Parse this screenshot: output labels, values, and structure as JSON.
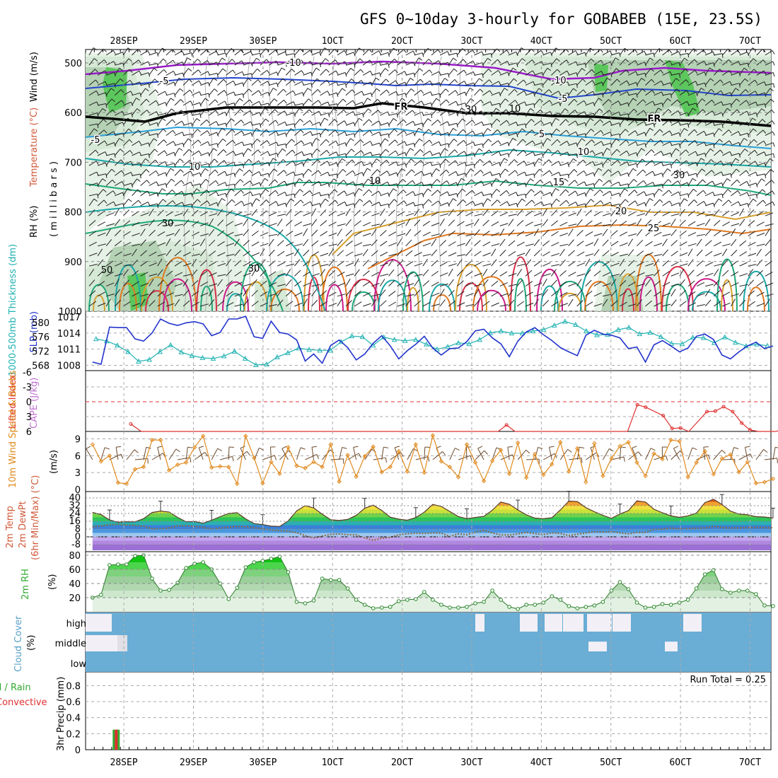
{
  "title": "GFS 0~10day 3-hourly for GOBABEB (15E, 23.5S)",
  "colors": {
    "rh_green": "#3cc93c",
    "temperature_label": "#d05a3a",
    "temp_purple": "#9a1bc9",
    "wind_label": "#000000",
    "slp_blue": "#2233cc",
    "thickness_teal": "#22b2b2",
    "lifted_red": "#e03030",
    "cape_violet": "#c070d0",
    "wind10_orange": "#e08a1e",
    "rh2m_green": "#33aa33",
    "cloud_blue": "#6aadd5",
    "precip_green": "#33aa33",
    "precip_red": "#e03030",
    "grid": "#aaaaaa"
  },
  "x_axis": {
    "dates": [
      "28SEP",
      "29SEP",
      "30SEP",
      "1OCT",
      "2OCT",
      "3OCT",
      "4OCT",
      "5OCT",
      "6OCT",
      "7OCT"
    ]
  },
  "panels": {
    "upper_air": {
      "labels": {
        "rh": "RH (%)",
        "temperature": "Temperature (°C)",
        "wind": "Wind (m/s)",
        "pressure": "( m i l l i b a r s )"
      },
      "y_ticks": [
        "500",
        "600",
        "700",
        "800",
        "900",
        "1000"
      ],
      "isotherm_labels": [
        {
          "text": "-10",
          "color": "#9a1bc9"
        },
        {
          "text": "-10",
          "color": "#9a1bc9"
        },
        {
          "text": "-5",
          "color": "#2244cc"
        },
        {
          "text": "-5",
          "color": "#2244cc"
        },
        {
          "text": "FR",
          "color": "#000000"
        },
        {
          "text": "FR",
          "color": "#000000"
        },
        {
          "text": "-5",
          "color": "#2ba0d8"
        },
        {
          "text": "5",
          "color": "#2ba0d8"
        },
        {
          "text": "10",
          "color": "#1ba8a8"
        },
        {
          "text": "10",
          "color": "#1ba8a8"
        },
        {
          "text": "15",
          "color": "#20a878"
        },
        {
          "text": "20",
          "color": "#d8a030"
        },
        {
          "text": "25",
          "color": "#e07820"
        }
      ],
      "rh_labels": [
        "30",
        "50",
        "30",
        "30",
        "10",
        "10",
        "30"
      ]
    },
    "slp": {
      "labels": {
        "thickness": "1000-500mb Thickness (dm)",
        "slp": "SLP (mb)"
      },
      "thickness_ticks": [
        "580",
        "576",
        "572",
        "568"
      ],
      "slp_ticks": [
        "1017",
        "1014",
        "1011",
        "1008"
      ],
      "slp": [
        1008.6,
        1008.2,
        1015.1,
        1015.0,
        1015.0,
        1012.9,
        1012.5,
        1014.0,
        1016.6,
        1015.8,
        1015.4,
        1015.9,
        1016.1,
        1015.7,
        1013.5,
        1014.1,
        1016.6,
        1016.6,
        1017.1,
        1013.3,
        1013.0,
        1016.2,
        1014.1,
        1013.8,
        1012.7,
        1008.8,
        1010.1,
        1008.4,
        1011.7,
        1012.7,
        1011.3,
        1009.0,
        1010.1,
        1012.1,
        1013.5,
        1011.6,
        1009.2,
        1010.7,
        1011.9,
        1013.4,
        1011.2,
        1009.9,
        1011.1,
        1011.2,
        1012.4,
        1014.4,
        1014.7,
        1013.1,
        1012.0,
        1009.6,
        1012.5,
        1014.2,
        1015.0,
        1013.7,
        1012.6,
        1011.3,
        1010.5,
        1009.8,
        1013.6,
        1014.5,
        1013.8,
        1013.6,
        1013.1,
        1011.1,
        1011.4,
        1008.6,
        1011.8,
        1012.6,
        1011.6,
        1010.5,
        1011.2,
        1013.4,
        1013.8,
        1012.8,
        1009.9,
        1009.2,
        1010.5,
        1011.6,
        1012.3,
        1011.1,
        1011.6
      ],
      "thickness": [
        575.4,
        574.8,
        573.6,
        571.8,
        569.1,
        569.6,
        571.8,
        573.7,
        571.7,
        570.7,
        570.1,
        569.9,
        570.6,
        571.9,
        569.9,
        568.1,
        568.3,
        570.3,
        571.5,
        572.8,
        572.4,
        572.2,
        572.2,
        574.6,
        576.2,
        576.0,
        573.6,
        575.9,
        575.2,
        574.9,
        575.2,
        573.9,
        572.5,
        573.2,
        574.3,
        574.0,
        575.2,
        577.1,
        577.6,
        577.0,
        577.0,
        577.6,
        578.0,
        579.2,
        580.3,
        579.4,
        577.6,
        576.5,
        576.6,
        578.0,
        578.6,
        576.8,
        577.2,
        576.0,
        574.1,
        574.0,
        575.8,
        575.7,
        574.3,
        575.9,
        574.4,
        573.4,
        573.9,
        573.5
      ]
    },
    "stability": {
      "labels": {
        "lifted": "Lifted Index",
        "cape": "CAPE (J/kg)"
      },
      "y_ticks": [
        "-6",
        "-3",
        "0",
        "3",
        "6"
      ],
      "lifted_index": [
        {
          "d": 0.1,
          "v": 4.5
        },
        {
          "d": 0.25,
          "v": 6.0
        },
        {
          "d": 5.38,
          "v": 6.0
        },
        {
          "d": 5.5,
          "v": 4.7
        },
        {
          "d": 5.62,
          "v": 6.0
        },
        {
          "d": 7.24,
          "v": 6.0
        },
        {
          "d": 7.38,
          "v": 0.6
        },
        {
          "d": 7.5,
          "v": 1.1
        },
        {
          "d": 7.75,
          "v": 2.8
        },
        {
          "d": 7.88,
          "v": 5.4
        },
        {
          "d": 8.0,
          "v": 5.3
        },
        {
          "d": 8.12,
          "v": 6.0
        },
        {
          "d": 8.38,
          "v": 2.0
        },
        {
          "d": 8.5,
          "v": 1.9
        },
        {
          "d": 8.62,
          "v": 1.0
        },
        {
          "d": 8.75,
          "v": 2.0
        },
        {
          "d": 8.88,
          "v": 4.3
        },
        {
          "d": 9.0,
          "v": 5.7
        },
        {
          "d": 9.12,
          "v": 6.0
        },
        {
          "d": 9.38,
          "v": 6.0
        },
        {
          "d": 9.5,
          "v": 5.0
        },
        {
          "d": 9.62,
          "v": 6.0
        }
      ]
    },
    "wind10": {
      "labels": {
        "wind10": "10m Wind Speed & Barbs",
        "units": "(m/s)"
      },
      "y_ticks": [
        "0",
        "3",
        "6",
        "9"
      ],
      "speed": [
        8.0,
        5.0,
        6.0,
        1.2,
        1.0,
        3.6,
        4.0,
        8.8,
        8.8,
        3.4,
        4.4,
        4.8,
        7.5,
        9.5,
        3.9,
        4.1,
        4.0,
        1.0,
        9.5,
        5.6,
        1.1,
        4.9,
        2.8,
        7.5,
        4.2,
        3.8,
        4.9,
        4.0,
        8.0,
        1.4,
        6.1,
        2.3,
        5.9,
        7.6,
        3.1,
        4.0,
        6.8,
        3.2,
        8.0,
        3.0,
        9.6,
        5.0,
        4.0,
        2.2,
        8.0,
        4.8,
        1.5,
        5.1,
        7.0,
        2.8,
        8.3,
        2.1,
        6.3,
        2.6,
        4.5,
        8.4,
        3.2,
        7.3,
        1.3,
        8.2,
        2.4,
        5.5,
        7.7,
        8.4,
        4.8,
        2.4,
        6.4,
        5.4,
        8.8,
        8.6,
        2.2,
        4.8,
        6.8,
        2.7,
        5.5,
        6.2,
        3.1,
        4.9,
        1.1,
        1.3,
        1.9
      ]
    },
    "temp2m": {
      "labels": {
        "temp": "2m Temp",
        "dewpt": "2m DewPt",
        "minmax": "(6hr Min/Max) (°C)"
      },
      "y_ticks": [
        "40",
        "32",
        "24",
        "16",
        "8",
        "0",
        "-8"
      ],
      "temp": [
        25.2,
        22.8,
        17.4,
        15.0,
        15.5,
        15.4,
        18.7,
        25.0,
        26.5,
        25.5,
        20.0,
        15.5,
        15.7,
        14.0,
        17.1,
        20.7,
        24.0,
        24.8,
        18.5,
        13.6,
        12.6,
        11.0,
        10.6,
        16.4,
        26.7,
        32.0,
        29.7,
        23.3,
        17.5,
        16.8,
        17.9,
        22.1,
        29.3,
        32.6,
        27.1,
        20.2,
        18.2,
        17.1,
        19.8,
        25.4,
        33.3,
        31.2,
        26.1,
        20.9,
        18.6,
        19.9,
        21.0,
        27.4,
        35.8,
        33.5,
        27.6,
        22.6,
        19.3,
        18.6,
        19.6,
        27.6,
        36.7,
        36.3,
        30.0,
        25.8,
        22.1,
        19.0,
        23.5,
        26.9,
        37.0,
        35.8,
        28.4,
        24.7,
        21.5,
        20.0,
        21.6,
        24.4,
        35.2,
        38.6,
        33.3,
        26.4,
        23.4,
        22.6,
        20.7,
        20.4,
        19.3
      ],
      "dewpt": [
        10.1,
        11.1,
        12.5,
        12.8,
        12.2,
        11.7,
        11.0,
        8.3,
        8.2,
        9.3,
        11.3,
        11.4,
        10.7,
        10.0,
        8.1,
        9.1,
        10.0,
        10.6,
        10.5,
        9.6,
        8.3,
        7.0,
        6.3,
        5.8,
        4.4,
        1.2,
        -1.2,
        0.7,
        2.5,
        3.0,
        2.2,
        2.0,
        -1.0,
        -3.5,
        -1.5,
        -0.5,
        2.1,
        3.1,
        3.8,
        3.4,
        4.0,
        3.8,
        0.4,
        3.0,
        2.1,
        4.8,
        6.6,
        4.0,
        2.0,
        1.8,
        3.0,
        4.6,
        3.3,
        2.3,
        4.0,
        3.5,
        1.2,
        2.7,
        3.9,
        5.4,
        4.9,
        5.5,
        4.1,
        3.0,
        4.6,
        4.5,
        7.6,
        8.0,
        9.1,
        8.3,
        8.5,
        9.0,
        9.2,
        10.8,
        9.6,
        9.2,
        9.3,
        9.6,
        9.8,
        9.6,
        9.3
      ]
    },
    "rh2m": {
      "labels": {
        "rh": "2m RH",
        "units": "(%)"
      },
      "y_ticks": [
        "20",
        "40",
        "60",
        "80"
      ],
      "rh": [
        20,
        24,
        66,
        67,
        67,
        79,
        80,
        47,
        30,
        31,
        41,
        62,
        68,
        70,
        60,
        40,
        18,
        34,
        63,
        70,
        72,
        75,
        78,
        56,
        14,
        12,
        16,
        47,
        45,
        45,
        33,
        17,
        10,
        5,
        6,
        7,
        15,
        17,
        18,
        28,
        17,
        10,
        6,
        6,
        7,
        12,
        14,
        30,
        17,
        7,
        4,
        10,
        10,
        13,
        22,
        17,
        8,
        5,
        7,
        9,
        14,
        30,
        42,
        32,
        13,
        6,
        7,
        11,
        10,
        13,
        17,
        33,
        53,
        59,
        32,
        27,
        30,
        30,
        25,
        9,
        8
      ]
    },
    "cloud": {
      "labels": {
        "cloud": "Cloud Cover",
        "units": "(%)"
      },
      "levels": [
        "high",
        "middle",
        "low"
      ]
    },
    "precip": {
      "labels": {
        "precip": "3hr Precip (mm)",
        "legend_a": "Total / Rain",
        "legend_b": "Convective"
      },
      "run_total": "Run Total = 0.25",
      "y_ticks": [
        "0",
        "0.2",
        "0.4",
        "0.6",
        "0.8"
      ],
      "total": 0.25,
      "convective": 0.25
    }
  },
  "chart_data": {
    "type": "line",
    "title": "GFS 0~10day 3-hourly for GOBABEB (15E, 23.5S)",
    "x_labels": [
      "28SEP",
      "29SEP",
      "30SEP",
      "1OCT",
      "2OCT",
      "3OCT",
      "4OCT",
      "5OCT",
      "6OCT",
      "7OCT"
    ],
    "series": [
      {
        "name": "SLP (mb)",
        "values": "panels.slp.slp"
      },
      {
        "name": "1000-500mb Thickness (dm)",
        "values": "panels.slp.thickness"
      },
      {
        "name": "10m Wind Speed (m/s)",
        "values": "panels.wind10.speed"
      },
      {
        "name": "2m Temp (°C)",
        "values": "panels.temp2m.temp"
      },
      {
        "name": "2m DewPt (°C)",
        "values": "panels.temp2m.dewpt"
      },
      {
        "name": "2m RH (%)",
        "values": "panels.rh2m.rh"
      }
    ],
    "precip_run_total": 0.25
  }
}
